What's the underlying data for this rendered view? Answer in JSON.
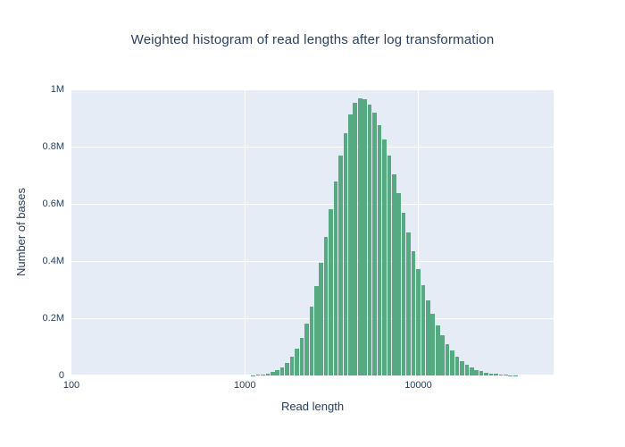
{
  "chart": {
    "colors": {
      "title_text": "#2a3f5f",
      "axis_text": "#2a3f5f",
      "plot_bg": "#e5ecf6",
      "bar": "#55aa82",
      "grid": "#ffffff"
    }
  },
  "chart_data": {
    "type": "bar",
    "title": "Weighted histogram of read lengths after log transformation",
    "xlabel": "Read length",
    "ylabel": "Number of bases",
    "x_scale": "log10",
    "x_axis_range_log10": [
      2.0,
      4.78
    ],
    "ylim": [
      0,
      1000000
    ],
    "grid": true,
    "legend": false,
    "x_ticks": [
      {
        "value": 100,
        "label": "100"
      },
      {
        "value": 1000,
        "label": "1000"
      },
      {
        "value": 10000,
        "label": "10000"
      }
    ],
    "y_ticks": [
      {
        "value": 0,
        "label": "0"
      },
      {
        "value": 200000,
        "label": "0.2M"
      },
      {
        "value": 400000,
        "label": "0.4M"
      },
      {
        "value": 600000,
        "label": "0.6M"
      },
      {
        "value": 800000,
        "label": "0.8M"
      },
      {
        "value": 1000000,
        "label": "1M"
      }
    ],
    "bins": {
      "log10_start": 3.036,
      "log10_width": 0.028,
      "count": 55
    },
    "values": [
      1254,
      2259,
      3955,
      6720,
      11170,
      18030,
      28260,
      43270,
      64330,
      93100,
      131280,
      180140,
      240170,
      312000,
      394700,
      485600,
      581400,
      677600,
      768400,
      848300,
      911400,
      953000,
      969700,
      965200,
      947500,
      917600,
      876600,
      826100,
      768000,
      704300,
      637300,
      568700,
      500700,
      434900,
      372600,
      315000,
      262500,
      216000,
      175200,
      140300,
      110700,
      86200,
      66300,
      50300,
      37600,
      27700,
      20200,
      14500,
      10200,
      7100,
      4900,
      3400,
      2300,
      1500,
      1000
    ]
  }
}
